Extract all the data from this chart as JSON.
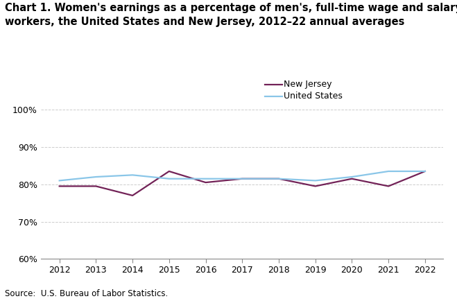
{
  "title_line1": "Chart 1. Women's earnings as a percentage of men's, full-time wage and salary",
  "title_line2": "workers, the United States and New Jersey, 2012–22 annual averages",
  "years": [
    2012,
    2013,
    2014,
    2015,
    2016,
    2017,
    2018,
    2019,
    2020,
    2021,
    2022
  ],
  "new_jersey": [
    79.5,
    79.5,
    77.0,
    83.5,
    80.5,
    81.5,
    81.5,
    79.5,
    81.5,
    79.5,
    83.5
  ],
  "united_states": [
    81.0,
    82.0,
    82.5,
    81.5,
    81.5,
    81.5,
    81.5,
    81.0,
    82.0,
    83.5,
    83.5
  ],
  "nj_color": "#722257",
  "us_color": "#8AC6E8",
  "ylim": [
    60,
    102
  ],
  "yticks": [
    60,
    70,
    80,
    90,
    100
  ],
  "ytick_labels": [
    "60%",
    "70%",
    "80%",
    "90%",
    "100%"
  ],
  "source": "Source:  U.S. Bureau of Labor Statistics.",
  "legend_nj": "New Jersey",
  "legend_us": "United States",
  "line_width": 1.6,
  "grid_color": "#CCCCCC",
  "background_color": "#FFFFFF",
  "title_fontsize": 10.5,
  "tick_fontsize": 9,
  "source_fontsize": 8.5
}
